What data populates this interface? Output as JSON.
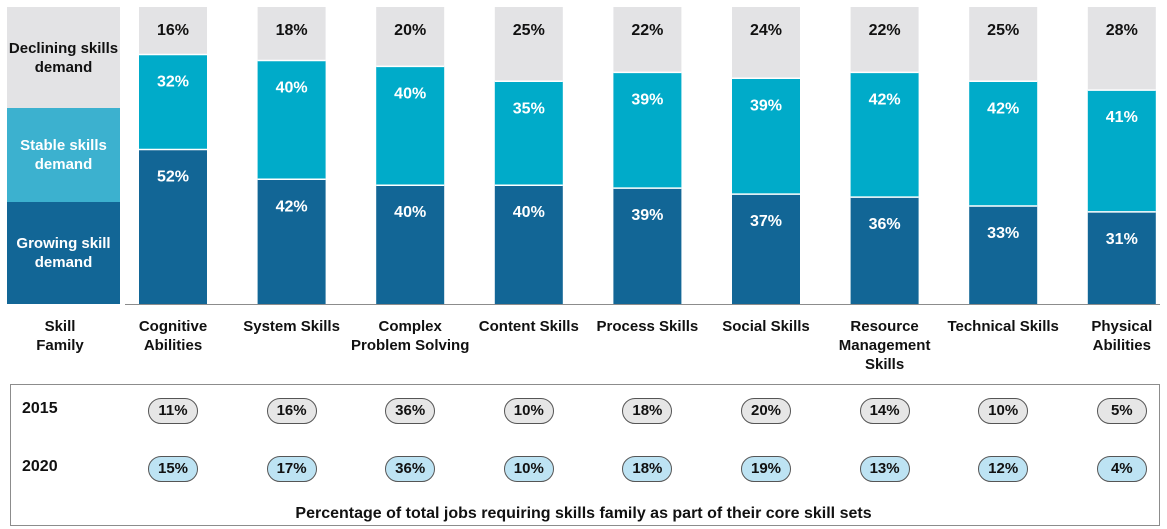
{
  "colors": {
    "declining": "#e3e3e5",
    "stable": "#00abc9",
    "growing": "#126696",
    "legend_declining": "#e3e3e5",
    "legend_stable": "#3cb1cf",
    "legend_growing": "#126696",
    "pill_2015": "#e6e6e6",
    "pill_2020": "#bde3f3"
  },
  "legend": {
    "declining": "Declining skills demand",
    "stable": "Stable skills demand",
    "growing": "Growing skill demand"
  },
  "skill_family_label": "Skill Family",
  "chart_data": {
    "type": "bar",
    "stacked": true,
    "categories": [
      "Cognitive Abilities",
      "System Skills",
      "Complex Problem Solving",
      "Content Skills",
      "Process Skills",
      "Social Skills",
      "Resource Management Skills",
      "Technical Skills",
      "Physical Abilities"
    ],
    "series": [
      {
        "name": "Growing skill demand",
        "values": [
          52,
          42,
          40,
          40,
          39,
          37,
          36,
          33,
          31
        ]
      },
      {
        "name": "Stable skills demand",
        "values": [
          32,
          40,
          40,
          35,
          39,
          39,
          42,
          42,
          41
        ]
      },
      {
        "name": "Declining skills demand",
        "values": [
          16,
          18,
          20,
          25,
          22,
          24,
          22,
          25,
          28
        ]
      }
    ],
    "value_suffix": "%",
    "ylim": [
      0,
      100
    ]
  },
  "table": {
    "rows": [
      {
        "year": "2015",
        "values": [
          "11%",
          "16%",
          "36%",
          "10%",
          "18%",
          "20%",
          "14%",
          "10%",
          "5%"
        ]
      },
      {
        "year": "2020",
        "values": [
          "15%",
          "17%",
          "36%",
          "10%",
          "18%",
          "19%",
          "13%",
          "12%",
          "4%"
        ]
      }
    ]
  },
  "footnote": "Percentage of total jobs requiring skills family as part of their core skill sets"
}
